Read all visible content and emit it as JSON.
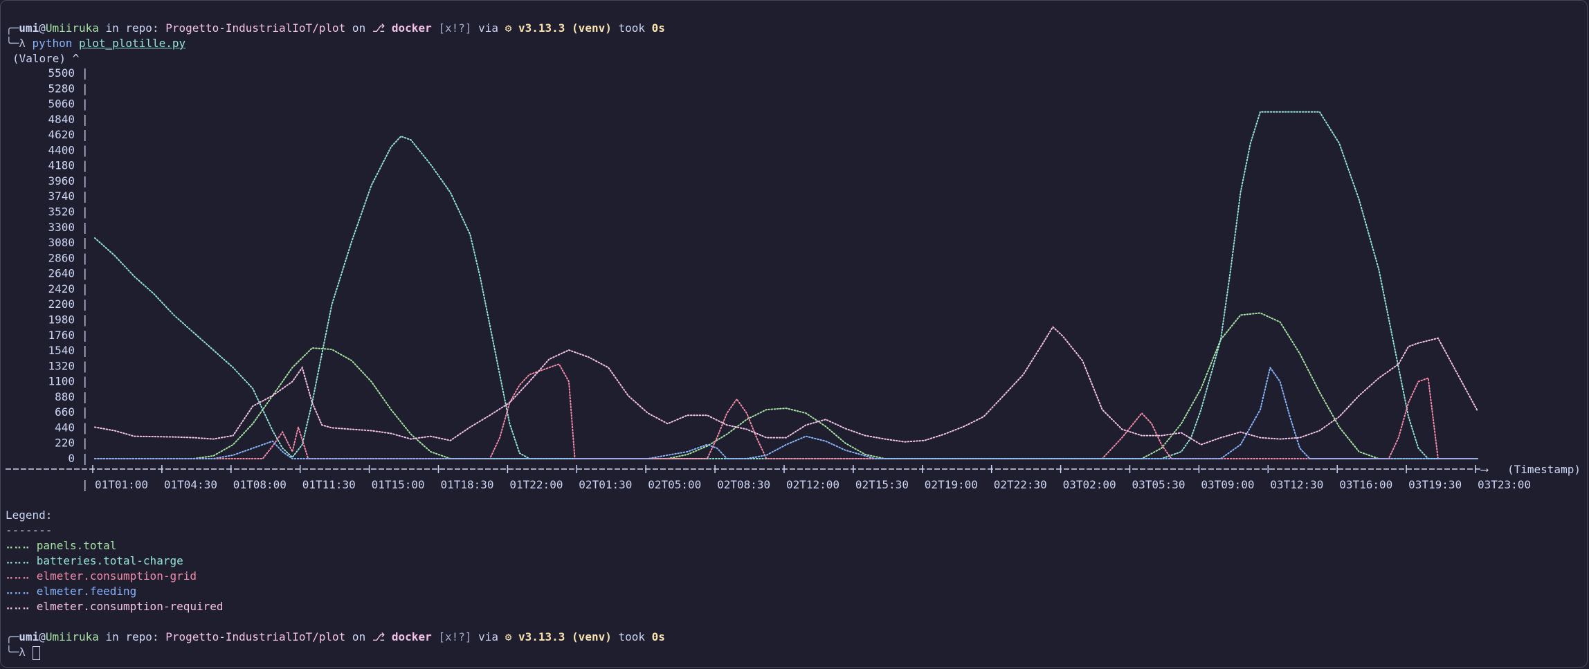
{
  "prompt": {
    "user": "umi",
    "at": "@",
    "host": "Umiiruka",
    "in_repo": " in repo: ",
    "repo": "Progetto-IndustrialIoT/plot",
    "on": " on ",
    "branch_icon": "⎇",
    "branch": "docker",
    "status": "[x!?]",
    "via": " via ",
    "python_icon": "⚙",
    "python_version": "v3.13.3",
    "venv": "(venv)",
    "took": " took ",
    "duration": "0s",
    "arrow": "╰─λ",
    "corner": "╭─"
  },
  "command": {
    "program": "python",
    "file": "plot_plotille.py"
  },
  "legend": {
    "title": "Legend:",
    "rule": "-------",
    "marker": "⠤⠤⠤"
  },
  "colors": {
    "panels_total": "#a6e3a1",
    "batteries_total_charge": "#94e2d5",
    "elmeter_consumption_grid": "#f38ba8",
    "elmeter_feeding": "#89b4fa",
    "elmeter_consumption_required": "#f5c2e7"
  },
  "chart_data": {
    "type": "line",
    "ylabel": "(Valore)",
    "xlabel": "(Timestamp)",
    "ylim": [
      0,
      5500
    ],
    "y_ticks": [
      "5500",
      "5280",
      "5060",
      "4840",
      "4620",
      "4400",
      "4180",
      "3960",
      "3740",
      "3520",
      "3300",
      "3080",
      "2860",
      "2640",
      "2420",
      "2200",
      "1980",
      "1760",
      "1540",
      "1320",
      "1100",
      "880",
      "660",
      "440",
      "220",
      "0"
    ],
    "x_ticks": [
      "01T01:00",
      "01T04:30",
      "01T08:00",
      "01T11:30",
      "01T15:00",
      "01T18:30",
      "01T22:00",
      "02T01:30",
      "02T05:00",
      "02T08:30",
      "02T12:00",
      "02T15:30",
      "02T19:00",
      "02T22:30",
      "03T02:00",
      "03T05:30",
      "03T09:00",
      "03T12:30",
      "03T16:00",
      "03T19:30",
      "03T23:00"
    ],
    "x_hours": [
      0,
      3.5,
      7,
      10.5,
      14,
      17.5,
      21,
      24.5,
      28,
      31.5,
      35,
      38.5,
      42,
      45.5,
      49,
      52.5,
      56,
      59.5,
      63,
      66.5,
      70
    ],
    "series": [
      {
        "name": "panels.total",
        "color_key": "panels_total",
        "points": [
          [
            0,
            0
          ],
          [
            5,
            0
          ],
          [
            6,
            40
          ],
          [
            7,
            200
          ],
          [
            8,
            500
          ],
          [
            9,
            900
          ],
          [
            10,
            1300
          ],
          [
            11,
            1580
          ],
          [
            12,
            1560
          ],
          [
            13,
            1400
          ],
          [
            14,
            1100
          ],
          [
            15,
            700
          ],
          [
            16,
            350
          ],
          [
            17,
            100
          ],
          [
            18,
            0
          ],
          [
            29,
            0
          ],
          [
            30,
            60
          ],
          [
            31,
            180
          ],
          [
            32,
            350
          ],
          [
            33,
            560
          ],
          [
            34,
            700
          ],
          [
            35,
            720
          ],
          [
            36,
            650
          ],
          [
            37,
            460
          ],
          [
            38,
            220
          ],
          [
            39,
            60
          ],
          [
            40,
            0
          ],
          [
            53,
            0
          ],
          [
            54,
            150
          ],
          [
            55,
            500
          ],
          [
            56,
            1000
          ],
          [
            57,
            1700
          ],
          [
            58,
            2050
          ],
          [
            59,
            2080
          ],
          [
            60,
            1950
          ],
          [
            61,
            1500
          ],
          [
            62,
            950
          ],
          [
            63,
            450
          ],
          [
            64,
            100
          ],
          [
            65,
            0
          ],
          [
            70,
            0
          ]
        ]
      },
      {
        "name": "batteries.total-charge",
        "color_key": "batteries_total_charge",
        "points": [
          [
            0,
            3150
          ],
          [
            1,
            2900
          ],
          [
            2,
            2600
          ],
          [
            3,
            2350
          ],
          [
            4,
            2050
          ],
          [
            5,
            1800
          ],
          [
            6,
            1550
          ],
          [
            7,
            1300
          ],
          [
            8,
            1000
          ],
          [
            8.5,
            700
          ],
          [
            9,
            400
          ],
          [
            9.5,
            150
          ],
          [
            10,
            20
          ],
          [
            10.5,
            200
          ],
          [
            11,
            800
          ],
          [
            11.5,
            1500
          ],
          [
            12,
            2200
          ],
          [
            13,
            3100
          ],
          [
            14,
            3900
          ],
          [
            15,
            4450
          ],
          [
            15.5,
            4600
          ],
          [
            16,
            4550
          ],
          [
            17,
            4200
          ],
          [
            18,
            3800
          ],
          [
            19,
            3200
          ],
          [
            19.5,
            2600
          ],
          [
            20,
            1900
          ],
          [
            20.5,
            1200
          ],
          [
            21,
            500
          ],
          [
            21.5,
            80
          ],
          [
            22,
            0
          ],
          [
            54,
            0
          ],
          [
            55,
            100
          ],
          [
            55.5,
            300
          ],
          [
            56,
            700
          ],
          [
            57,
            1700
          ],
          [
            57.5,
            2700
          ],
          [
            58,
            3800
          ],
          [
            58.5,
            4500
          ],
          [
            59,
            4950
          ],
          [
            62,
            4950
          ],
          [
            63,
            4500
          ],
          [
            64,
            3700
          ],
          [
            65,
            2700
          ],
          [
            65.5,
            2000
          ],
          [
            66,
            1300
          ],
          [
            66.5,
            600
          ],
          [
            67,
            150
          ],
          [
            67.5,
            0
          ],
          [
            70,
            0
          ]
        ]
      },
      {
        "name": "elmeter.consumption-grid",
        "color_key": "elmeter_consumption_grid",
        "points": [
          [
            0,
            0
          ],
          [
            8.5,
            0
          ],
          [
            9,
            180
          ],
          [
            9.5,
            380
          ],
          [
            10,
            100
          ],
          [
            10.3,
            450
          ],
          [
            10.8,
            0
          ],
          [
            20,
            0
          ],
          [
            20.5,
            300
          ],
          [
            21,
            800
          ],
          [
            21.5,
            1050
          ],
          [
            22,
            1200
          ],
          [
            23,
            1300
          ],
          [
            23.5,
            1350
          ],
          [
            24,
            1100
          ],
          [
            24.3,
            0
          ],
          [
            31,
            0
          ],
          [
            31.5,
            300
          ],
          [
            32,
            650
          ],
          [
            32.5,
            850
          ],
          [
            33,
            650
          ],
          [
            33.5,
            300
          ],
          [
            34,
            0
          ],
          [
            51,
            0
          ],
          [
            52,
            300
          ],
          [
            53,
            650
          ],
          [
            53.5,
            500
          ],
          [
            54,
            200
          ],
          [
            54.5,
            0
          ],
          [
            59,
            0
          ],
          [
            62,
            0
          ],
          [
            63,
            0
          ],
          [
            65.5,
            0
          ],
          [
            66,
            300
          ],
          [
            66.5,
            800
          ],
          [
            67,
            1100
          ],
          [
            67.5,
            1150
          ],
          [
            68,
            0
          ],
          [
            70,
            0
          ]
        ]
      },
      {
        "name": "elmeter.feeding",
        "color_key": "elmeter_feeding",
        "points": [
          [
            0,
            0
          ],
          [
            6,
            0
          ],
          [
            7,
            50
          ],
          [
            8,
            150
          ],
          [
            9,
            250
          ],
          [
            9.5,
            100
          ],
          [
            10,
            0
          ],
          [
            28,
            0
          ],
          [
            29,
            50
          ],
          [
            30,
            100
          ],
          [
            31,
            200
          ],
          [
            31.5,
            150
          ],
          [
            32,
            0
          ],
          [
            33,
            0
          ],
          [
            34,
            50
          ],
          [
            35,
            200
          ],
          [
            36,
            320
          ],
          [
            37,
            250
          ],
          [
            38,
            120
          ],
          [
            39,
            40
          ],
          [
            39.5,
            0
          ],
          [
            57,
            0
          ],
          [
            58,
            200
          ],
          [
            59,
            700
          ],
          [
            59.5,
            1300
          ],
          [
            60,
            1100
          ],
          [
            60.5,
            600
          ],
          [
            61,
            150
          ],
          [
            61.5,
            0
          ],
          [
            70,
            0
          ]
        ]
      },
      {
        "name": "elmeter.consumption-required",
        "color_key": "elmeter_consumption_required",
        "points": [
          [
            0,
            450
          ],
          [
            1,
            400
          ],
          [
            2,
            320
          ],
          [
            4,
            310
          ],
          [
            5,
            300
          ],
          [
            6,
            280
          ],
          [
            7,
            330
          ],
          [
            8,
            750
          ],
          [
            9,
            900
          ],
          [
            10,
            1100
          ],
          [
            10.5,
            1300
          ],
          [
            11,
            800
          ],
          [
            11.5,
            480
          ],
          [
            12,
            440
          ],
          [
            13,
            420
          ],
          [
            14,
            400
          ],
          [
            15,
            360
          ],
          [
            16,
            280
          ],
          [
            17,
            320
          ],
          [
            18,
            260
          ],
          [
            19,
            450
          ],
          [
            20,
            620
          ],
          [
            21,
            800
          ],
          [
            22,
            1100
          ],
          [
            23,
            1420
          ],
          [
            24,
            1550
          ],
          [
            25,
            1450
          ],
          [
            26,
            1300
          ],
          [
            27,
            900
          ],
          [
            28,
            650
          ],
          [
            29,
            500
          ],
          [
            30,
            620
          ],
          [
            31,
            620
          ],
          [
            32,
            480
          ],
          [
            33,
            420
          ],
          [
            34,
            300
          ],
          [
            35,
            300
          ],
          [
            36,
            480
          ],
          [
            37,
            560
          ],
          [
            38,
            430
          ],
          [
            39,
            330
          ],
          [
            40,
            280
          ],
          [
            41,
            240
          ],
          [
            42,
            260
          ],
          [
            43,
            350
          ],
          [
            44,
            460
          ],
          [
            45,
            600
          ],
          [
            46,
            900
          ],
          [
            47,
            1200
          ],
          [
            48,
            1650
          ],
          [
            48.5,
            1880
          ],
          [
            49,
            1750
          ],
          [
            50,
            1400
          ],
          [
            51,
            700
          ],
          [
            52,
            420
          ],
          [
            53,
            330
          ],
          [
            54,
            330
          ],
          [
            55,
            370
          ],
          [
            56,
            200
          ],
          [
            57,
            300
          ],
          [
            58,
            380
          ],
          [
            59,
            300
          ],
          [
            60,
            280
          ],
          [
            61,
            300
          ],
          [
            62,
            400
          ],
          [
            63,
            600
          ],
          [
            64,
            900
          ],
          [
            65,
            1150
          ],
          [
            66,
            1350
          ],
          [
            66.5,
            1600
          ],
          [
            67,
            1650
          ],
          [
            68,
            1720
          ],
          [
            69,
            1200
          ],
          [
            70,
            680
          ]
        ]
      }
    ]
  }
}
